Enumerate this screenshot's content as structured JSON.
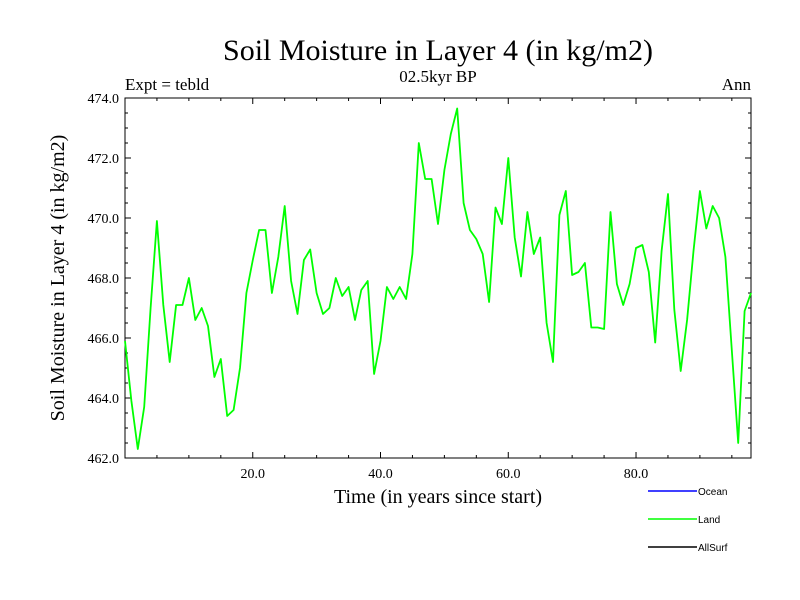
{
  "header": {
    "title": "Soil Moisture in Layer 4 (in kg/m2)",
    "left_label": "Expt = tebld",
    "center_label": "02.5kyr BP",
    "right_label": "Ann"
  },
  "colors": {
    "land": "#00ff00",
    "ocean": "#0000ff",
    "allsurf": "#000000",
    "axis": "#000000"
  },
  "chart_data": {
    "type": "line",
    "title": "Soil Moisture in Layer 4 (in kg/m2)",
    "xlabel": "Time (in years since start)",
    "ylabel": "Soil Moisture in Layer 4 (in kg/m2)",
    "xlim": [
      0,
      98
    ],
    "ylim": [
      462.0,
      474.0
    ],
    "x_ticks": [
      20,
      40,
      60,
      80
    ],
    "x_tick_labels": [
      "20.0",
      "40.0",
      "60.0",
      "80.0"
    ],
    "y_ticks": [
      462,
      464,
      466,
      468,
      470,
      472,
      474
    ],
    "y_tick_labels": [
      "462.0",
      "464.0",
      "466.0",
      "468.0",
      "470.0",
      "472.0",
      "474.0"
    ],
    "legend": [
      "Ocean",
      "Land",
      "AllSurf"
    ],
    "series": [
      {
        "name": "Land",
        "color": "#00ff00",
        "x_start": 0,
        "x_step": 1,
        "values": [
          465.9,
          463.9,
          462.3,
          463.7,
          467.0,
          469.9,
          467.1,
          465.2,
          467.1,
          467.1,
          468.0,
          466.6,
          467.0,
          466.4,
          464.7,
          465.3,
          463.4,
          463.6,
          465.0,
          467.5,
          468.6,
          469.6,
          469.6,
          467.5,
          468.7,
          470.4,
          467.9,
          466.8,
          468.6,
          468.95,
          467.5,
          466.8,
          467.0,
          468.0,
          467.4,
          467.7,
          466.6,
          467.6,
          467.9,
          464.8,
          465.9,
          467.7,
          467.3,
          467.7,
          467.3,
          468.8,
          472.5,
          471.3,
          471.3,
          469.8,
          471.6,
          472.8,
          473.65,
          470.5,
          469.6,
          469.3,
          468.8,
          467.2,
          470.35,
          469.8,
          472.0,
          469.35,
          468.05,
          470.2,
          468.8,
          469.35,
          466.5,
          465.2,
          470.1,
          470.9,
          468.1,
          468.2,
          468.5,
          466.35,
          466.35,
          466.3,
          470.2,
          467.8,
          467.1,
          467.8,
          469.0,
          469.1,
          468.2,
          465.85,
          468.9,
          470.8,
          466.95,
          464.9,
          466.6,
          468.9,
          470.9,
          469.65,
          470.4,
          470.0,
          468.7,
          465.6,
          462.5,
          466.9,
          467.5
        ]
      }
    ]
  }
}
